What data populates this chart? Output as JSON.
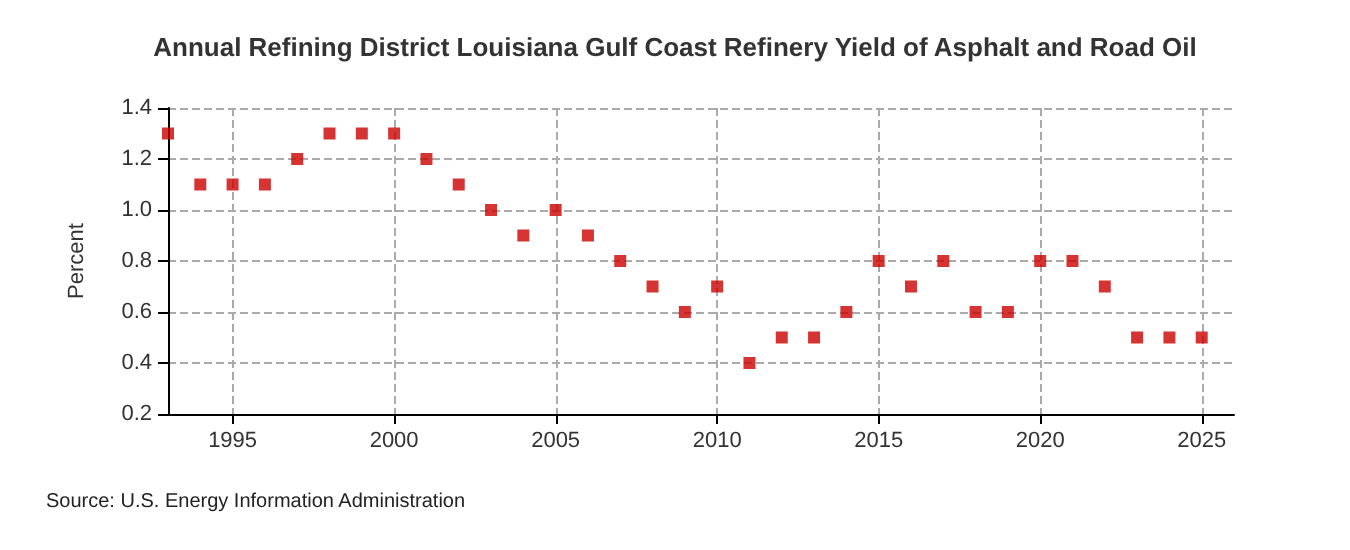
{
  "chart_data": {
    "type": "scatter",
    "title": "Annual Refining District Louisiana Gulf Coast Refinery Yield of Asphalt and Road Oil",
    "ylabel": "Percent",
    "x": [
      1993,
      1994,
      1995,
      1996,
      1997,
      1998,
      1999,
      2000,
      2001,
      2002,
      2003,
      2004,
      2005,
      2006,
      2007,
      2008,
      2009,
      2010,
      2011,
      2012,
      2013,
      2014,
      2015,
      2016,
      2017,
      2018,
      2019,
      2020,
      2021,
      2022,
      2023,
      2024,
      2025
    ],
    "series": [
      {
        "color": "#cc0000",
        "values": [
          1.3,
          1.1,
          1.1,
          1.1,
          1.2,
          1.3,
          1.3,
          1.3,
          1.2,
          1.1,
          1.0,
          0.9,
          1.0,
          0.9,
          0.8,
          0.7,
          0.6,
          0.7,
          0.4,
          0.5,
          0.5,
          0.6,
          0.8,
          0.7,
          0.8,
          0.6,
          0.6,
          0.8,
          0.8,
          0.7,
          0.5,
          0.5,
          0.5
        ]
      }
    ],
    "xlim": [
      1993,
      2026
    ],
    "xticks": [
      1995,
      2000,
      2005,
      2010,
      2015,
      2020,
      2025
    ],
    "ylim": [
      0.2,
      1.4
    ],
    "yticks": [
      0.2,
      0.4,
      0.6,
      0.8,
      {
        "value": 1,
        "label": "1.0"
      },
      1.2,
      1.4
    ],
    "grid": true,
    "marker": "square",
    "annotations": [
      "Source: U.S. Energy Information Administration"
    ]
  }
}
